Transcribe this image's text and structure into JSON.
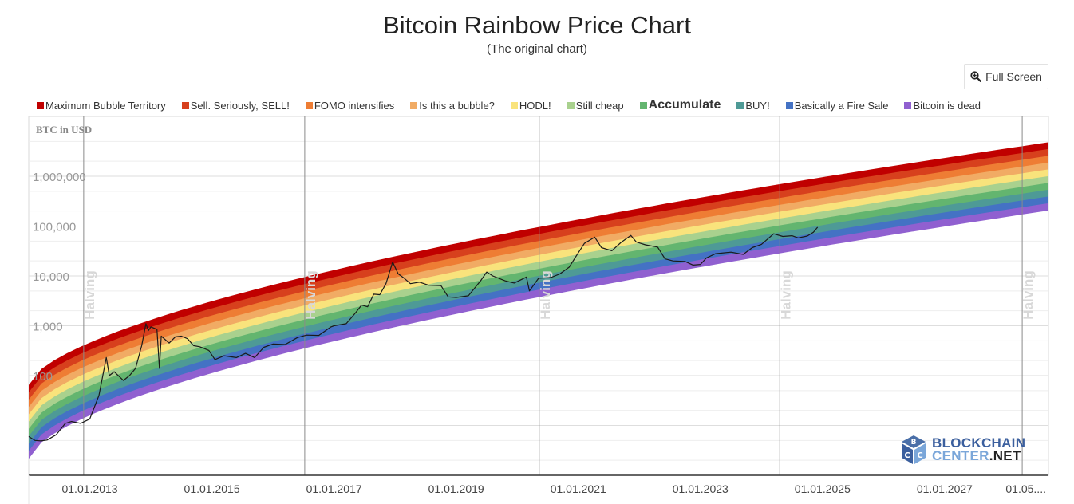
{
  "header": {
    "title": "Bitcoin Rainbow Price Chart",
    "subtitle": "(The original chart)",
    "fullscreen_label": "Full Screen",
    "fullscreen_icon": "zoom-in-icon"
  },
  "watermark": {
    "line1": "BLOCKCHAIN",
    "line2_a": "CENTER",
    "line2_b": ".NET"
  },
  "chart_data": {
    "type": "area",
    "title": "Bitcoin Rainbow Price Chart",
    "subtitle": "(The original chart)",
    "ylabel": "BTC in USD",
    "yscale": "log",
    "ylim": [
      1,
      10000000
    ],
    "y_ticks": [
      {
        "value": 100,
        "label": "100"
      },
      {
        "value": 1000,
        "label": "1,000"
      },
      {
        "value": 10000,
        "label": "10,000"
      },
      {
        "value": 100000,
        "label": "100,000"
      },
      {
        "value": 1000000,
        "label": "1,000,000"
      }
    ],
    "xlim": [
      2012.0,
      2028.7
    ],
    "x_ticks": [
      {
        "value": 2013.0,
        "label": "01.01.2013"
      },
      {
        "value": 2015.0,
        "label": "01.01.2015"
      },
      {
        "value": 2017.0,
        "label": "01.01.2017"
      },
      {
        "value": 2019.0,
        "label": "01.01.2019"
      },
      {
        "value": 2021.0,
        "label": "01.01.2021"
      },
      {
        "value": 2023.0,
        "label": "01.01.2023"
      },
      {
        "value": 2025.0,
        "label": "01.01.2025"
      },
      {
        "value": 2027.0,
        "label": "01.01.2027"
      },
      {
        "value": 2028.33,
        "label": "01.05...."
      }
    ],
    "grid": true,
    "legend_position": "top",
    "bands": [
      {
        "name": "Maximum Bubble Territory",
        "color": "#c00000",
        "bold": false
      },
      {
        "name": "Sell. Seriously, SELL!",
        "color": "#d7401d",
        "bold": false
      },
      {
        "name": "FOMO intensifies",
        "color": "#ee7d34",
        "bold": false
      },
      {
        "name": "Is this a bubble?",
        "color": "#f1ab64",
        "bold": false
      },
      {
        "name": "HODL!",
        "color": "#f9e37c",
        "bold": false
      },
      {
        "name": "Still cheap",
        "color": "#a9d18e",
        "bold": false
      },
      {
        "name": "Accumulate",
        "color": "#63b56f",
        "bold": true
      },
      {
        "name": "BUY!",
        "color": "#4e9a96",
        "bold": false
      },
      {
        "name": "Basically a Fire Sale",
        "color": "#4472c4",
        "bold": false
      },
      {
        "name": "Bitcoin is dead",
        "color": "#9060d0",
        "bold": false
      }
    ],
    "band_bounds": {
      "x": [
        2012.0,
        2028.7
      ],
      "top_start": 65,
      "bottom_start": 2.2,
      "top_end": 4800000,
      "bottom_end": 210000
    },
    "halvings": [
      {
        "x": 2012.9,
        "label": "Halving"
      },
      {
        "x": 2016.52,
        "label": "Halving"
      },
      {
        "x": 2020.36,
        "label": "Halving"
      },
      {
        "x": 2024.3,
        "label": "Halving"
      },
      {
        "x": 2028.27,
        "label": "Halving"
      }
    ],
    "price_series": {
      "name": "BTC price",
      "color": "#1a1a1a",
      "points": [
        [
          2012.0,
          6
        ],
        [
          2012.1,
          5
        ],
        [
          2012.2,
          4.9
        ],
        [
          2012.3,
          5.1
        ],
        [
          2012.45,
          6.5
        ],
        [
          2012.6,
          11
        ],
        [
          2012.7,
          12
        ],
        [
          2012.85,
          11
        ],
        [
          2013.0,
          13.5
        ],
        [
          2013.15,
          40
        ],
        [
          2013.27,
          230
        ],
        [
          2013.32,
          100
        ],
        [
          2013.4,
          120
        ],
        [
          2013.55,
          80
        ],
        [
          2013.65,
          100
        ],
        [
          2013.75,
          140
        ],
        [
          2013.85,
          400
        ],
        [
          2013.92,
          1100
        ],
        [
          2013.96,
          800
        ],
        [
          2014.0,
          950
        ],
        [
          2014.1,
          850
        ],
        [
          2014.14,
          140
        ],
        [
          2014.17,
          620
        ],
        [
          2014.3,
          450
        ],
        [
          2014.4,
          600
        ],
        [
          2014.5,
          620
        ],
        [
          2014.6,
          550
        ],
        [
          2014.7,
          400
        ],
        [
          2014.8,
          380
        ],
        [
          2014.95,
          320
        ],
        [
          2015.05,
          210
        ],
        [
          2015.2,
          250
        ],
        [
          2015.4,
          230
        ],
        [
          2015.55,
          280
        ],
        [
          2015.7,
          230
        ],
        [
          2015.85,
          370
        ],
        [
          2016.0,
          430
        ],
        [
          2016.2,
          420
        ],
        [
          2016.4,
          580
        ],
        [
          2016.55,
          650
        ],
        [
          2016.75,
          640
        ],
        [
          2016.95,
          950
        ],
        [
          2017.0,
          1000
        ],
        [
          2017.2,
          1100
        ],
        [
          2017.35,
          1800
        ],
        [
          2017.45,
          2600
        ],
        [
          2017.55,
          2400
        ],
        [
          2017.65,
          4300
        ],
        [
          2017.75,
          4200
        ],
        [
          2017.85,
          7000
        ],
        [
          2017.96,
          19000
        ],
        [
          2018.05,
          11000
        ],
        [
          2018.15,
          9000
        ],
        [
          2018.25,
          7000
        ],
        [
          2018.4,
          7500
        ],
        [
          2018.55,
          6500
        ],
        [
          2018.75,
          6400
        ],
        [
          2018.87,
          3800
        ],
        [
          2019.0,
          3700
        ],
        [
          2019.2,
          4000
        ],
        [
          2019.4,
          8000
        ],
        [
          2019.5,
          12000
        ],
        [
          2019.6,
          10000
        ],
        [
          2019.8,
          8000
        ],
        [
          2019.95,
          7200
        ],
        [
          2020.15,
          9500
        ],
        [
          2020.2,
          5000
        ],
        [
          2020.35,
          9000
        ],
        [
          2020.55,
          9300
        ],
        [
          2020.7,
          11000
        ],
        [
          2020.85,
          15000
        ],
        [
          2021.0,
          29000
        ],
        [
          2021.1,
          45000
        ],
        [
          2021.27,
          60000
        ],
        [
          2021.38,
          37000
        ],
        [
          2021.55,
          32000
        ],
        [
          2021.7,
          47000
        ],
        [
          2021.86,
          65000
        ],
        [
          2021.95,
          48000
        ],
        [
          2022.1,
          42000
        ],
        [
          2022.3,
          38000
        ],
        [
          2022.42,
          22000
        ],
        [
          2022.55,
          20000
        ],
        [
          2022.75,
          19500
        ],
        [
          2022.88,
          16500
        ],
        [
          2023.0,
          17000
        ],
        [
          2023.1,
          23000
        ],
        [
          2023.25,
          28000
        ],
        [
          2023.5,
          30000
        ],
        [
          2023.7,
          27000
        ],
        [
          2023.85,
          37000
        ],
        [
          2024.0,
          43000
        ],
        [
          2024.2,
          70000
        ],
        [
          2024.35,
          62000
        ],
        [
          2024.5,
          64000
        ],
        [
          2024.6,
          58000
        ],
        [
          2024.75,
          63000
        ],
        [
          2024.85,
          75000
        ],
        [
          2024.92,
          95000
        ]
      ]
    },
    "source": "BLOCKCHAINCENTER.NET"
  }
}
